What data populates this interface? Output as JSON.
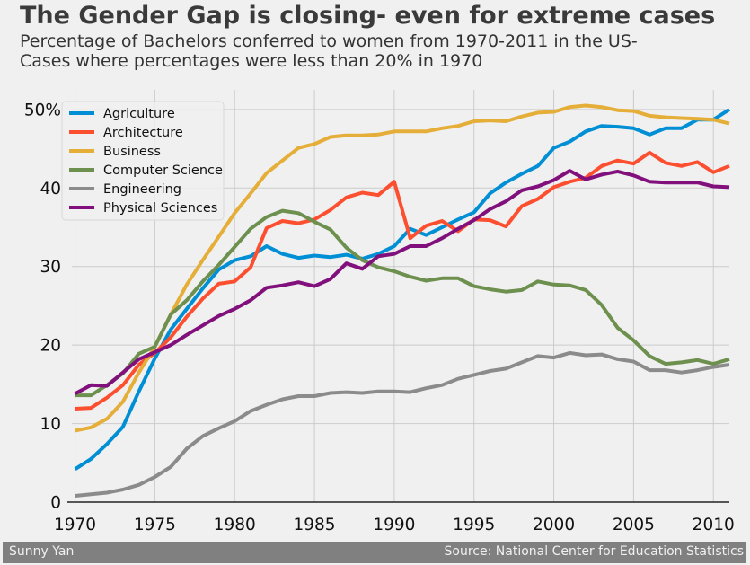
{
  "chart_data": {
    "type": "line",
    "title": "The Gender Gap is closing- even for extreme cases",
    "subtitle_lines": [
      "Percentage of Bachelors conferred to women from 1970-2011 in the US-",
      "Cases where percentages were less than 20% in 1970"
    ],
    "x": [
      1970,
      1971,
      1972,
      1973,
      1974,
      1975,
      1976,
      1977,
      1978,
      1979,
      1980,
      1981,
      1982,
      1983,
      1984,
      1985,
      1986,
      1987,
      1988,
      1989,
      1990,
      1991,
      1992,
      1993,
      1994,
      1995,
      1996,
      1997,
      1998,
      1999,
      2000,
      2001,
      2002,
      2003,
      2004,
      2005,
      2006,
      2007,
      2008,
      2009,
      2010,
      2011
    ],
    "xlim": [
      1969.8,
      2011
    ],
    "ylim": [
      0,
      52.5
    ],
    "x_ticks": [
      "1970",
      "1975",
      "1980",
      "1985",
      "1990",
      "1995",
      "2000",
      "2005",
      "2010"
    ],
    "y_ticks": [
      "0",
      "10",
      "20",
      "30",
      "40",
      "50%"
    ],
    "grid": true,
    "legend_position": "top-left",
    "series": [
      {
        "name": "Agriculture",
        "color": "#008fd5",
        "values": [
          4.2,
          5.5,
          7.4,
          9.6,
          14.1,
          18.3,
          22.0,
          24.6,
          27.2,
          29.6,
          30.8,
          31.3,
          32.6,
          31.6,
          31.1,
          31.4,
          31.2,
          31.5,
          31.0,
          31.6,
          32.6,
          34.8,
          34.0,
          35.0,
          36.0,
          36.9,
          39.3,
          40.7,
          41.8,
          42.8,
          45.1,
          45.9,
          47.2,
          47.9,
          47.8,
          47.6,
          46.8,
          47.6,
          47.6,
          48.7,
          48.7,
          50.0
        ]
      },
      {
        "name": "Architecture",
        "color": "#fc4f30",
        "values": [
          11.9,
          12.0,
          13.3,
          14.9,
          17.5,
          19.0,
          21.0,
          23.6,
          25.9,
          27.8,
          28.1,
          29.9,
          34.9,
          35.8,
          35.5,
          36.0,
          37.2,
          38.8,
          39.4,
          39.1,
          40.8,
          33.6,
          35.2,
          35.8,
          34.5,
          36.0,
          35.9,
          35.1,
          37.7,
          38.6,
          40.1,
          40.8,
          41.3,
          42.8,
          43.5,
          43.1,
          44.5,
          43.2,
          42.8,
          43.3,
          42.0,
          42.8
        ]
      },
      {
        "name": "Business",
        "color": "#e5ae38",
        "values": [
          9.1,
          9.5,
          10.6,
          12.8,
          16.5,
          19.8,
          23.9,
          27.7,
          30.8,
          33.8,
          36.8,
          39.3,
          41.9,
          43.5,
          45.1,
          45.6,
          46.5,
          46.7,
          46.7,
          46.8,
          47.2,
          47.2,
          47.2,
          47.6,
          47.9,
          48.5,
          48.6,
          48.5,
          49.1,
          49.6,
          49.7,
          50.3,
          50.5,
          50.3,
          49.9,
          49.8,
          49.2,
          49.0,
          48.9,
          48.8,
          48.7,
          48.2
        ]
      },
      {
        "name": "Computer Science",
        "color": "#6d904f",
        "values": [
          13.6,
          13.6,
          14.9,
          16.4,
          18.9,
          19.8,
          23.9,
          25.7,
          28.1,
          30.2,
          32.5,
          34.8,
          36.3,
          37.1,
          36.8,
          35.7,
          34.7,
          32.4,
          30.8,
          29.9,
          29.4,
          28.7,
          28.2,
          28.5,
          28.5,
          27.5,
          27.1,
          26.8,
          27.0,
          28.1,
          27.7,
          27.6,
          27.0,
          25.1,
          22.2,
          20.6,
          18.6,
          17.6,
          17.8,
          18.1,
          17.6,
          18.2
        ]
      },
      {
        "name": "Engineering",
        "color": "#8b8b8b",
        "values": [
          0.8,
          1.0,
          1.2,
          1.6,
          2.2,
          3.2,
          4.5,
          6.8,
          8.4,
          9.4,
          10.3,
          11.6,
          12.4,
          13.1,
          13.5,
          13.5,
          13.9,
          14.0,
          13.9,
          14.1,
          14.1,
          14.0,
          14.5,
          14.9,
          15.7,
          16.2,
          16.7,
          17.0,
          17.8,
          18.6,
          18.4,
          19.0,
          18.7,
          18.8,
          18.2,
          17.9,
          16.8,
          16.8,
          16.5,
          16.8,
          17.2,
          17.5
        ]
      },
      {
        "name": "Physical Sciences",
        "color": "#810f7c",
        "values": [
          13.8,
          14.9,
          14.8,
          16.5,
          18.2,
          19.1,
          20.0,
          21.3,
          22.5,
          23.7,
          24.6,
          25.7,
          27.3,
          27.6,
          28.0,
          27.5,
          28.4,
          30.4,
          29.7,
          31.3,
          31.6,
          32.6,
          32.6,
          33.6,
          34.8,
          35.9,
          37.3,
          38.3,
          39.7,
          40.2,
          41.0,
          42.2,
          41.1,
          41.7,
          42.1,
          41.6,
          40.8,
          40.7,
          40.7,
          40.7,
          40.2,
          40.1
        ]
      }
    ]
  },
  "footer": {
    "author": "Sunny Yan",
    "source": "Source: National Center for Education Statistics"
  }
}
